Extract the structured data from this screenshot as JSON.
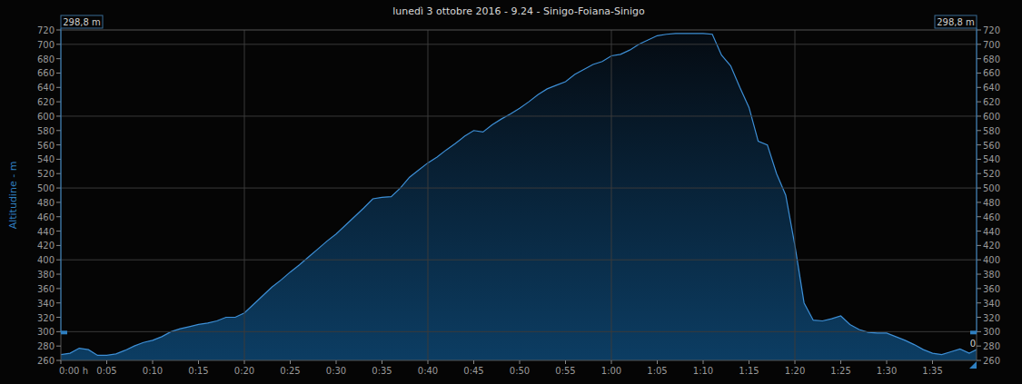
{
  "chart_data": {
    "type": "area",
    "title": "lunedì 3 ottobre 2016 - 9.24 - Sinigo-Foiana-Sinigo",
    "y_label": "Altitudine - m",
    "color": "#3d8fd6",
    "grid": true,
    "x": [
      0,
      1,
      2,
      3,
      4,
      5,
      6,
      7,
      8,
      9,
      10,
      11,
      12,
      13,
      14,
      15,
      16,
      17,
      18,
      19,
      20,
      21,
      22,
      23,
      24,
      25,
      26,
      27,
      28,
      29,
      30,
      31,
      32,
      33,
      34,
      35,
      36,
      37,
      38,
      39,
      40,
      41,
      42,
      43,
      44,
      45,
      46,
      47,
      48,
      49,
      50,
      51,
      52,
      53,
      54,
      55,
      56,
      57,
      58,
      59,
      60,
      61,
      62,
      63,
      64,
      65,
      66,
      67,
      68,
      69,
      70,
      71,
      72,
      73,
      74,
      75,
      76,
      77,
      78,
      79,
      80,
      81,
      82,
      83,
      84,
      85,
      86,
      87,
      88,
      89,
      90,
      91,
      92,
      93,
      94,
      95,
      96,
      97,
      98,
      99,
      99.8
    ],
    "values": [
      268,
      270,
      277,
      275,
      267,
      267,
      269,
      274,
      280,
      285,
      288,
      293,
      300,
      304,
      307,
      310,
      312,
      315,
      320,
      320,
      326,
      338,
      350,
      362,
      372,
      383,
      393,
      404,
      415,
      426,
      436,
      448,
      460,
      472,
      485,
      487,
      488,
      500,
      515,
      525,
      535,
      543,
      553,
      562,
      572,
      580,
      578,
      588,
      596,
      603,
      611,
      620,
      630,
      638,
      643,
      648,
      658,
      665,
      672,
      676,
      684,
      686,
      692,
      700,
      706,
      712,
      714,
      715,
      715,
      715,
      715,
      714,
      685,
      670,
      640,
      612,
      565,
      560,
      520,
      490,
      420,
      340,
      316,
      315,
      318,
      322,
      310,
      303,
      299,
      298,
      298,
      293,
      288,
      282,
      275,
      270,
      268,
      272,
      276,
      270,
      275
    ],
    "xlim": [
      0,
      99.8
    ],
    "ylim": [
      260,
      720
    ],
    "xticks": [
      {
        "value": 0,
        "label": "0:00 h"
      },
      {
        "value": 5,
        "label": "0:05"
      },
      {
        "value": 10,
        "label": "0:10"
      },
      {
        "value": 15,
        "label": "0:15"
      },
      {
        "value": 20,
        "label": "0:20"
      },
      {
        "value": 25,
        "label": "0:25"
      },
      {
        "value": 30,
        "label": "0:30"
      },
      {
        "value": 35,
        "label": "0:35"
      },
      {
        "value": 40,
        "label": "0:40"
      },
      {
        "value": 45,
        "label": "0:45"
      },
      {
        "value": 50,
        "label": "0:50"
      },
      {
        "value": 55,
        "label": "0:55"
      },
      {
        "value": 60,
        "label": "1:00"
      },
      {
        "value": 65,
        "label": "1:05"
      },
      {
        "value": 70,
        "label": "1:10"
      },
      {
        "value": 75,
        "label": "1:15"
      },
      {
        "value": 80,
        "label": "1:20"
      },
      {
        "value": 85,
        "label": "1:25"
      },
      {
        "value": 90,
        "label": "1:30"
      },
      {
        "value": 95,
        "label": "1:35"
      }
    ],
    "yticks": [
      260,
      280,
      300,
      320,
      340,
      360,
      380,
      400,
      420,
      440,
      460,
      480,
      500,
      520,
      540,
      560,
      580,
      600,
      620,
      640,
      660,
      680,
      700,
      720
    ],
    "annotations": [
      {
        "text": "298,8 m",
        "value": 298.8
      },
      {
        "text": "298,8 m",
        "value": 298.8
      },
      {
        "text": "0"
      }
    ]
  }
}
